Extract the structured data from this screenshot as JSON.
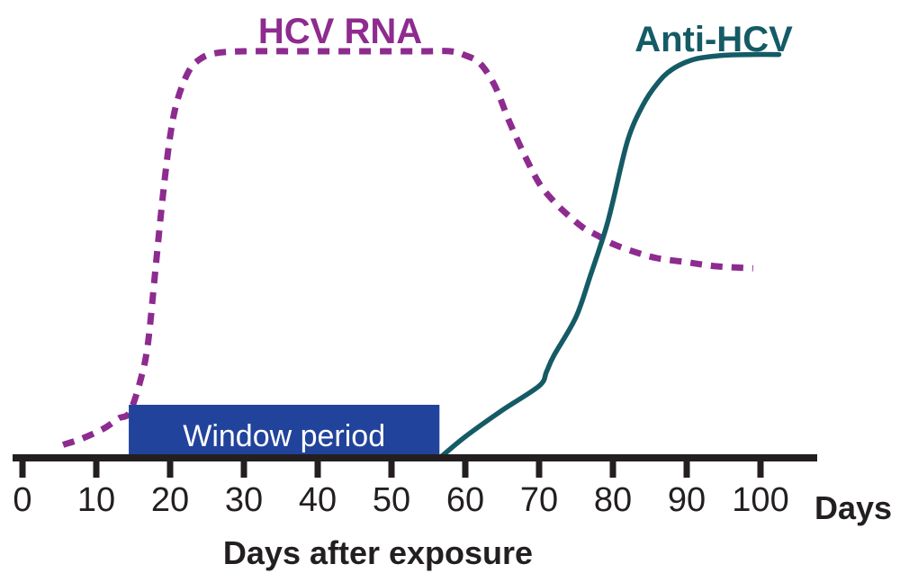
{
  "figure": {
    "background": "#ffffff"
  },
  "labels": {
    "hcv_rna": "HCV RNA",
    "anti_hcv": "Anti-HCV",
    "window_period": "Window period",
    "axis_unit": "Days",
    "x_axis_title": "Days after exposure"
  },
  "colors": {
    "hcv_rna": "#8e2b8f",
    "anti_hcv": "#145b66",
    "window_box": "#21439b",
    "window_text": "#ffffff",
    "axis": "#231f20",
    "tick_text": "#231f20"
  },
  "chart_data": {
    "type": "line",
    "title": "",
    "xlabel": "Days after exposure",
    "ylabel": "",
    "x_unit": "Days",
    "x_ticks": [
      0,
      10,
      20,
      30,
      40,
      50,
      60,
      70,
      80,
      90,
      100
    ],
    "xlim": [
      0,
      105
    ],
    "ylim": [
      0,
      100
    ],
    "y_axis_note": "relative level, qualitative (no y-axis shown)",
    "grid": false,
    "legend_position": "labels-above-curves",
    "series": [
      {
        "name": "HCV RNA",
        "style": "dashed",
        "color": "#8e2b8f",
        "points": [
          [
            5.5,
            3
          ],
          [
            8,
            4.5
          ],
          [
            11,
            7
          ],
          [
            13,
            9.5
          ],
          [
            14.5,
            11
          ],
          [
            16,
            19
          ],
          [
            17,
            28
          ],
          [
            18,
            46
          ],
          [
            19,
            64
          ],
          [
            20,
            79
          ],
          [
            21,
            88
          ],
          [
            22.5,
            95
          ],
          [
            24,
            98
          ],
          [
            26,
            99.5
          ],
          [
            30,
            100
          ],
          [
            38,
            100
          ],
          [
            46,
            100
          ],
          [
            54,
            100
          ],
          [
            58,
            100
          ],
          [
            60,
            99
          ],
          [
            62,
            97
          ],
          [
            64,
            91.5
          ],
          [
            66,
            82.5
          ],
          [
            68,
            74.5
          ],
          [
            70,
            67.5
          ],
          [
            72,
            63
          ],
          [
            74,
            59.5
          ],
          [
            76,
            56.5
          ],
          [
            78,
            54.5
          ],
          [
            80,
            52.5
          ],
          [
            83,
            50.5
          ],
          [
            86,
            49
          ],
          [
            90,
            48
          ],
          [
            94,
            47
          ],
          [
            99,
            46.5
          ]
        ]
      },
      {
        "name": "Anti-HCV",
        "style": "solid",
        "color": "#145b66",
        "points": [
          [
            56.7,
            0
          ],
          [
            60,
            5
          ],
          [
            65,
            11.5
          ],
          [
            70,
            17.5
          ],
          [
            71,
            21
          ],
          [
            72,
            25
          ],
          [
            75,
            34.5
          ],
          [
            77,
            45
          ],
          [
            79,
            56
          ],
          [
            80,
            63
          ],
          [
            82,
            78
          ],
          [
            84,
            86.5
          ],
          [
            86,
            92
          ],
          [
            88,
            95.5
          ],
          [
            91,
            98
          ],
          [
            95,
            99
          ],
          [
            99,
            99.2
          ],
          [
            102.5,
            99.2
          ]
        ]
      }
    ],
    "annotations": [
      {
        "label": "Window period",
        "start_day": 14.4,
        "end_day": 56.5
      }
    ]
  }
}
